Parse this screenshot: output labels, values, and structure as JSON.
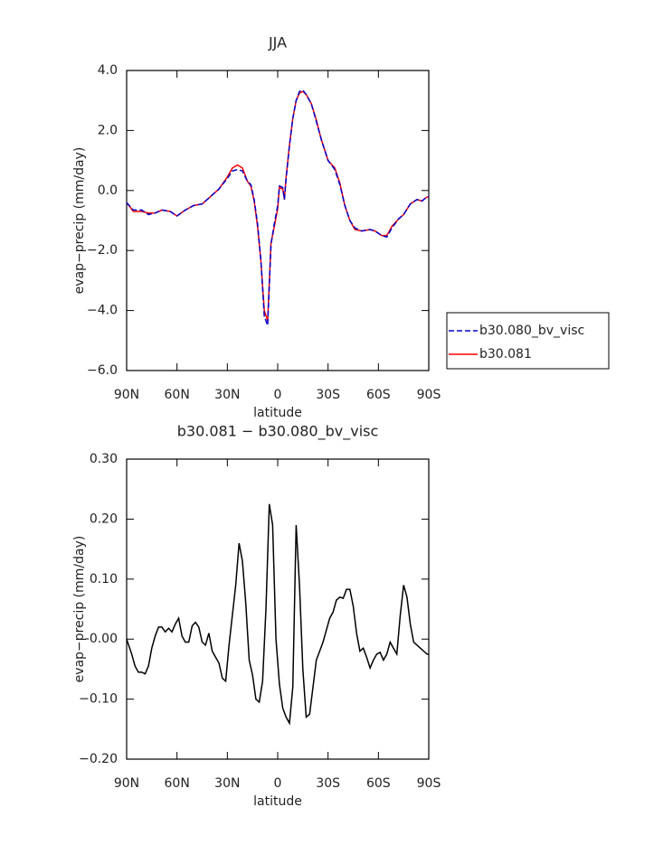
{
  "chart_data": [
    {
      "type": "line",
      "title": "JJA",
      "xlabel": "latitude",
      "ylabel": "evap−precip (mm/day)",
      "x": [
        90,
        86,
        81,
        77,
        73,
        69,
        64,
        60,
        55,
        50,
        45,
        40,
        35,
        30,
        27,
        24,
        21,
        18,
        16,
        14,
        12,
        10,
        8,
        6,
        4,
        2,
        0,
        -1,
        -3,
        -4,
        -5,
        -7,
        -9,
        -11,
        -13,
        -15,
        -17,
        -20,
        -23,
        -26,
        -30,
        -34,
        -37,
        -40,
        -43,
        -46,
        -50,
        -55,
        -58,
        -62,
        -65,
        -68,
        -72,
        -75,
        -79,
        -83,
        -86,
        -88,
        -90
      ],
      "series": [
        {
          "name": "b30.080_bv_visc",
          "color": "#0000cc",
          "linestyle": "dashed",
          "values": [
            -0.4,
            -0.65,
            -0.65,
            -0.8,
            -0.75,
            -0.65,
            -0.7,
            -0.85,
            -0.65,
            -0.5,
            -0.45,
            -0.2,
            0.05,
            0.4,
            0.65,
            0.7,
            0.65,
            0.3,
            0.2,
            -0.3,
            -1.1,
            -2.3,
            -4.2,
            -4.5,
            -1.8,
            -1.1,
            -0.5,
            0.15,
            0.1,
            -0.3,
            0.4,
            1.5,
            2.4,
            3.0,
            3.3,
            3.35,
            3.2,
            2.9,
            2.3,
            1.7,
            1.0,
            0.7,
            0.2,
            -0.5,
            -1.0,
            -1.25,
            -1.35,
            -1.3,
            -1.35,
            -1.5,
            -1.55,
            -1.25,
            -0.95,
            -0.8,
            -0.45,
            -0.3,
            -0.35,
            -0.25,
            -0.2
          ]
        },
        {
          "name": "b30.081",
          "color": "#ff0000",
          "linestyle": "solid",
          "values": [
            -0.4,
            -0.7,
            -0.7,
            -0.75,
            -0.75,
            -0.65,
            -0.7,
            -0.85,
            -0.65,
            -0.5,
            -0.45,
            -0.2,
            0.05,
            0.45,
            0.75,
            0.85,
            0.75,
            0.3,
            0.15,
            -0.35,
            -1.2,
            -2.35,
            -4.0,
            -4.35,
            -1.75,
            -1.2,
            -0.6,
            0.1,
            0.05,
            -0.3,
            0.45,
            1.5,
            2.4,
            3.0,
            3.25,
            3.3,
            3.2,
            2.9,
            2.35,
            1.7,
            1.0,
            0.75,
            0.25,
            -0.5,
            -1.0,
            -1.3,
            -1.35,
            -1.3,
            -1.35,
            -1.5,
            -1.5,
            -1.2,
            -0.95,
            -0.8,
            -0.45,
            -0.3,
            -0.35,
            -0.25,
            -0.2
          ]
        }
      ],
      "xlim": [
        90,
        -90
      ],
      "xticks": [
        {
          "value": 90,
          "label": "90N"
        },
        {
          "value": 60,
          "label": "60N"
        },
        {
          "value": 30,
          "label": "30N"
        },
        0,
        {
          "value": -30,
          "label": "30S"
        },
        {
          "value": -60,
          "label": "60S"
        },
        {
          "value": -90,
          "label": "90S"
        }
      ],
      "ylim": [
        -6,
        4
      ],
      "yticks": [
        {
          "value": 4,
          "label": "4.0"
        },
        {
          "value": 2,
          "label": "2.0"
        },
        {
          "value": 0,
          "label": "0.0"
        },
        {
          "value": -2,
          "label": "−2.0"
        },
        {
          "value": -4,
          "label": "−4.0"
        },
        {
          "value": -6,
          "label": "−6.0"
        }
      ],
      "legend": "right"
    },
    {
      "type": "line",
      "title": "b30.081 − b30.080_bv_visc",
      "xlabel": "latitude",
      "ylabel": "evap−precip (mm/day)",
      "x": [
        90,
        87,
        85,
        83,
        81,
        79,
        77,
        75,
        73,
        71,
        69,
        67,
        65,
        63,
        61,
        59,
        57,
        55,
        53,
        51,
        49,
        47,
        45,
        43,
        41,
        39,
        37,
        35,
        33,
        31,
        29,
        27,
        25,
        23,
        21,
        19,
        17,
        15,
        13,
        11,
        9,
        7,
        5,
        3,
        1,
        -1,
        -3,
        -5,
        -7,
        -9,
        -11,
        -13,
        -15,
        -17,
        -19,
        -21,
        -23,
        -25,
        -27,
        -29,
        -31,
        -33,
        -35,
        -37,
        -39,
        -41,
        -43,
        -45,
        -47,
        -49,
        -51,
        -53,
        -55,
        -57,
        -59,
        -61,
        -63,
        -65,
        -67,
        -69,
        -71,
        -73,
        -75,
        -77,
        -79,
        -81,
        -83,
        -85,
        -87,
        -89,
        -90
      ],
      "values": [
        0.0,
        -0.025,
        -0.045,
        -0.055,
        -0.055,
        -0.058,
        -0.045,
        -0.015,
        0.005,
        0.02,
        0.02,
        0.012,
        0.018,
        0.012,
        0.025,
        0.035,
        0.005,
        -0.005,
        -0.005,
        0.022,
        0.028,
        0.02,
        -0.005,
        -0.01,
        0.01,
        -0.02,
        -0.03,
        -0.04,
        -0.065,
        -0.07,
        -0.01,
        0.04,
        0.09,
        0.16,
        0.13,
        0.06,
        -0.035,
        -0.06,
        -0.1,
        -0.105,
        -0.07,
        0.05,
        0.225,
        0.19,
        0.0,
        -0.075,
        -0.115,
        -0.13,
        -0.14,
        -0.08,
        0.19,
        0.09,
        -0.05,
        -0.13,
        -0.125,
        -0.08,
        -0.035,
        -0.02,
        -0.005,
        0.015,
        0.035,
        0.045,
        0.065,
        0.07,
        0.068,
        0.083,
        0.083,
        0.055,
        0.01,
        -0.02,
        -0.015,
        -0.03,
        -0.048,
        -0.035,
        -0.025,
        -0.022,
        -0.035,
        -0.025,
        -0.005,
        -0.015,
        -0.025,
        0.04,
        0.09,
        0.07,
        0.025,
        -0.005,
        -0.01,
        -0.015,
        -0.02,
        -0.025,
        -0.025
      ],
      "color": "#000000",
      "xlim": [
        90,
        -90
      ],
      "xticks": [
        {
          "value": 90,
          "label": "90N"
        },
        {
          "value": 60,
          "label": "60N"
        },
        {
          "value": 30,
          "label": "30N"
        },
        0,
        {
          "value": -30,
          "label": "30S"
        },
        {
          "value": -60,
          "label": "60S"
        },
        {
          "value": -90,
          "label": "90S"
        }
      ],
      "ylim": [
        -0.2,
        0.3
      ],
      "yticks": [
        {
          "value": 0.3,
          "label": "0.30"
        },
        {
          "value": 0.2,
          "label": "0.20"
        },
        {
          "value": 0.1,
          "label": "0.10"
        },
        {
          "value": 0,
          "label": "-0.00"
        },
        {
          "value": -0.1,
          "label": "−0.10"
        },
        {
          "value": -0.2,
          "label": "−0.20"
        }
      ]
    }
  ]
}
